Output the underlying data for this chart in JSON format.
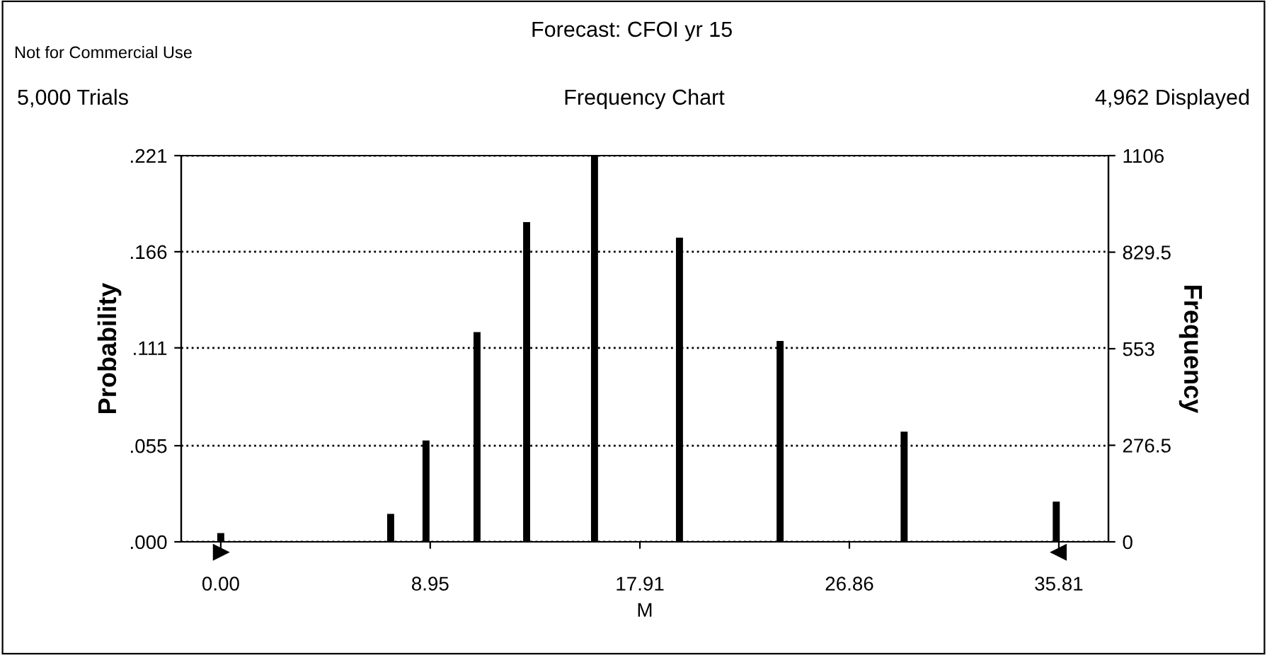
{
  "chart_data": {
    "type": "bar",
    "title": "Forecast: CFOI yr 15",
    "subtitle": "Frequency Chart",
    "xlabel": "M",
    "ylabel": "Probability",
    "y2label": "Frequency",
    "annotations": [
      "Not for Commercial Use",
      "5,000 Trials",
      "4,962 Displayed"
    ],
    "x": [
      0.0,
      7.26,
      8.77,
      10.95,
      13.07,
      15.97,
      19.6,
      23.9,
      29.2,
      35.7
    ],
    "values": [
      0.005,
      0.016,
      0.058,
      0.12,
      0.183,
      0.221,
      0.174,
      0.115,
      0.063,
      0.023
    ],
    "color": "#000000",
    "xlim": [
      -1.69,
      37.93
    ],
    "xticks": [
      {
        "value": 0,
        "label": "0.00"
      },
      8.95,
      17.91,
      26.86,
      35.81
    ],
    "ylim": [
      0,
      0.221
    ],
    "yticks": [
      {
        "value": 0,
        "label": ".000"
      },
      {
        "value": 0.055,
        "label": ".055"
      },
      {
        "value": 0.111,
        "label": ".111"
      },
      {
        "value": 0.166,
        "label": ".166"
      },
      {
        "value": 0.221,
        "label": ".221"
      }
    ],
    "y2lim": [
      0,
      1106
    ],
    "y2ticks": [
      0,
      276.5,
      553,
      829.5,
      1106
    ],
    "grid": "y",
    "line_style": "dotted"
  }
}
